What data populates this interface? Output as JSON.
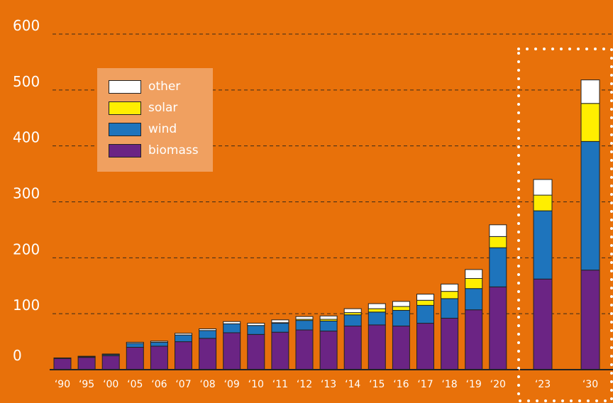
{
  "chart_data": {
    "type": "bar",
    "stacked": true,
    "categories": [
      "'90",
      "'95",
      "'00",
      "'05",
      "'06",
      "'07",
      "'08",
      "'09",
      "'10",
      "'11",
      "'12",
      "'13",
      "'14",
      "'15",
      "'16",
      "'17",
      "'18",
      "'19",
      "'20",
      "'23",
      "'30"
    ],
    "series": [
      {
        "name": "biomass",
        "color": "#6B2484",
        "values": [
          20,
          22,
          25,
          40,
          42,
          50,
          56,
          66,
          63,
          67,
          71,
          69,
          78,
          80,
          78,
          83,
          92,
          107,
          148,
          162,
          178
        ]
      },
      {
        "name": "wind",
        "color": "#1E74BC",
        "values": [
          0,
          1,
          2,
          7,
          7,
          12,
          14,
          16,
          16,
          16,
          17,
          18,
          20,
          23,
          28,
          32,
          35,
          38,
          70,
          122,
          230
        ]
      },
      {
        "name": "solar",
        "color": "#FFEE00",
        "values": [
          0,
          0,
          0,
          0,
          0,
          0,
          0,
          0,
          0,
          1,
          2,
          3,
          4,
          6,
          7,
          9,
          13,
          18,
          20,
          28,
          68
        ]
      },
      {
        "name": "other",
        "color": "#FFFFFF",
        "values": [
          1,
          1,
          1,
          2,
          2,
          3,
          3,
          4,
          4,
          5,
          5,
          6,
          7,
          9,
          9,
          11,
          13,
          16,
          21,
          28,
          42
        ]
      }
    ],
    "yticks": [
      0,
      100,
      200,
      300,
      400,
      500,
      600
    ],
    "ylim": [
      0,
      600
    ],
    "grid": true,
    "legend_position": "upper-left",
    "highlighted_categories": [
      "'23",
      "'30"
    ]
  },
  "colors": {
    "background": "#E8710A",
    "legend_background": "#F0A060",
    "axis_text": "#FFFFFF"
  }
}
